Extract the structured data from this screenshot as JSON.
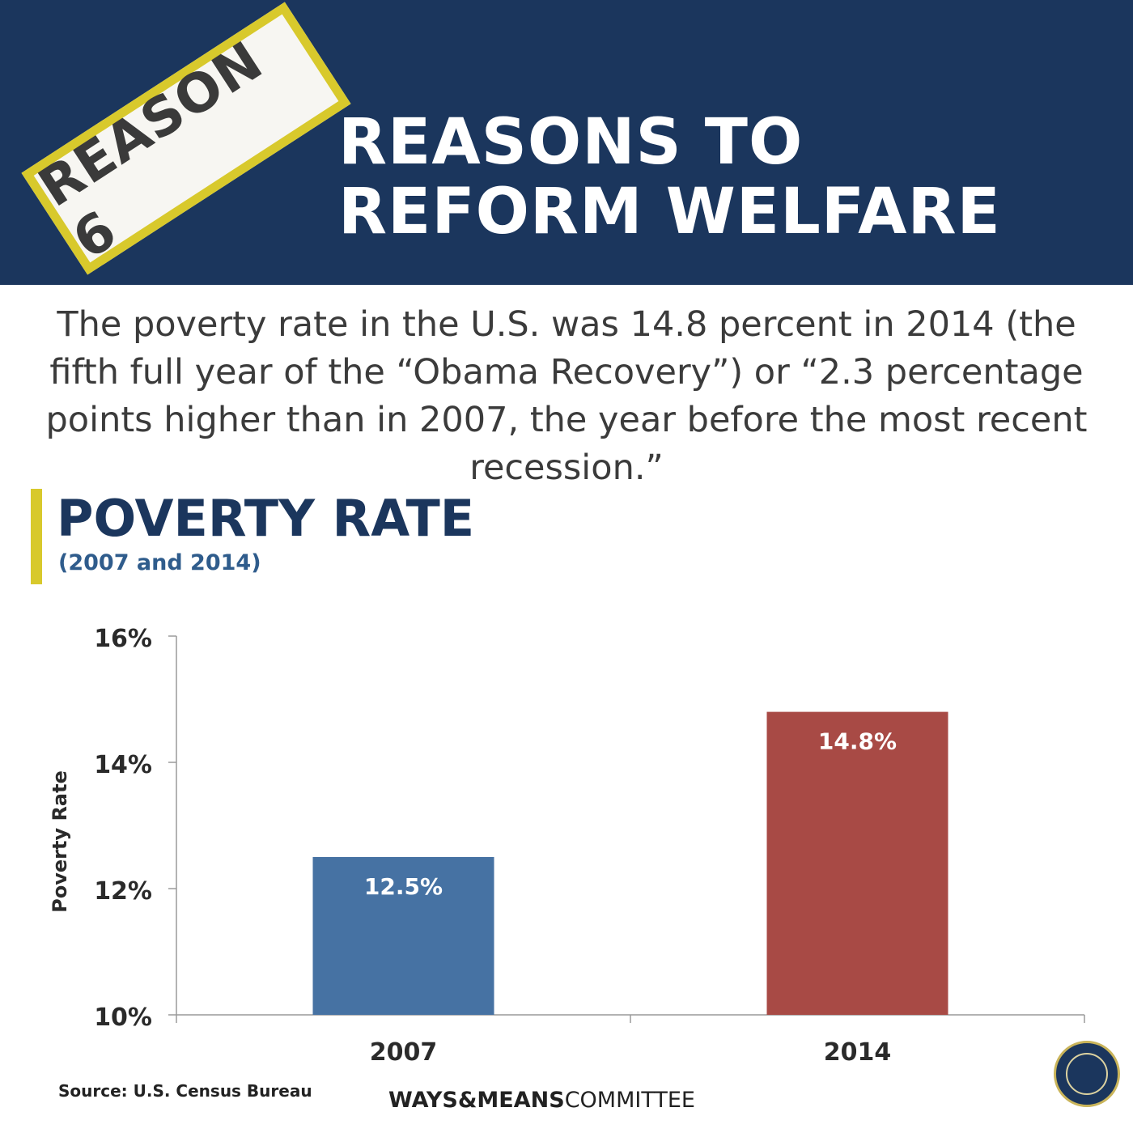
{
  "header": {
    "badge": "REASON 6",
    "title_line1": "REASONS TO",
    "title_line2": "REFORM WELFARE"
  },
  "intro": "The poverty rate in the U.S. was 14.8 percent in 2014 (the fifth full year of the “Obama Recovery”) or “2.3 percentage points higher than in 2007, the year before the most recent recession.”",
  "colors": {
    "navy": "#1b365d",
    "gold": "#d8c92c",
    "bar_2007": "#4672a3",
    "bar_2014": "#a84a45"
  },
  "chart_data": {
    "type": "bar",
    "title": "POVERTY RATE",
    "subtitle": "(2007 and 2014)",
    "xlabel": "",
    "ylabel": "Poverty Rate",
    "categories": [
      "2007",
      "2014"
    ],
    "values": [
      12.5,
      14.8
    ],
    "data_labels": [
      "12.5%",
      "14.8%"
    ],
    "bar_colors": [
      "#4672a3",
      "#a84a45"
    ],
    "ylim": [
      10,
      16
    ],
    "yticks": [
      10,
      12,
      14,
      16
    ],
    "ytick_labels": [
      "10%",
      "12%",
      "14%",
      "16%"
    ],
    "grid": false
  },
  "footer": {
    "source": "Source: U.S. Census Bureau",
    "logo_bold": "WAYS&MEANS",
    "logo_light": "COMMITTEE"
  },
  "seal_icon": "committee-seal-icon"
}
